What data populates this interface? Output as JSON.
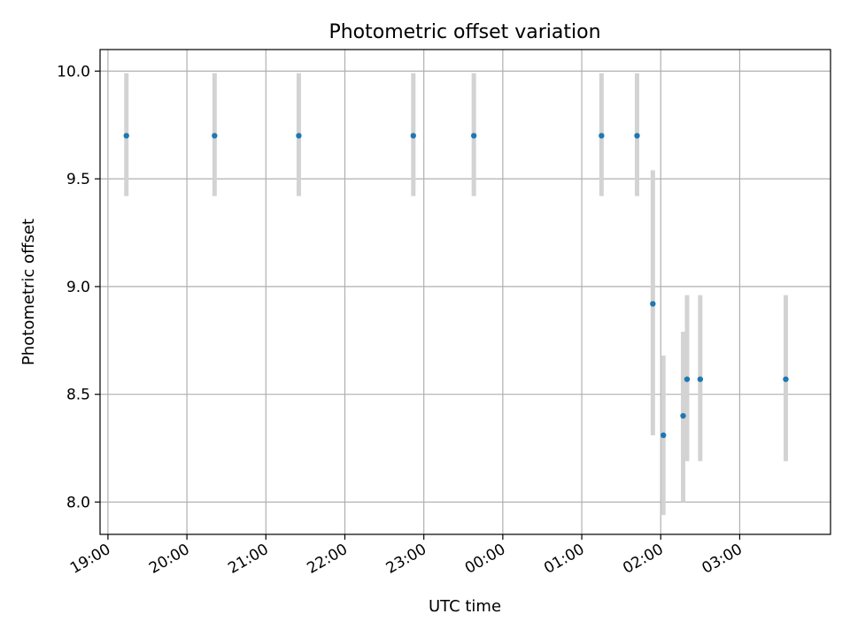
{
  "chart_data": {
    "type": "scatter",
    "title": "Photometric offset variation",
    "xlabel": "UTC time",
    "ylabel": "Photometric offset",
    "xlim": [
      "18:54",
      "04:09"
    ],
    "ylim": [
      7.85,
      10.1
    ],
    "grid": true,
    "x_ticks": [
      "19:00",
      "20:00",
      "21:00",
      "22:00",
      "23:00",
      "00:00",
      "01:00",
      "02:00",
      "03:00"
    ],
    "y_ticks": [
      "8.0",
      "8.5",
      "9.0",
      "9.5",
      "10.0"
    ],
    "point_color": "#1f77b4",
    "errorbar_color": "#d3d3d3",
    "points": [
      {
        "x": "19:14",
        "y": 9.7,
        "y_low": 9.42,
        "y_high": 9.99
      },
      {
        "x": "20:21",
        "y": 9.7,
        "y_low": 9.42,
        "y_high": 9.99
      },
      {
        "x": "21:25",
        "y": 9.7,
        "y_low": 9.42,
        "y_high": 9.99
      },
      {
        "x": "22:52",
        "y": 9.7,
        "y_low": 9.42,
        "y_high": 9.99
      },
      {
        "x": "23:38",
        "y": 9.7,
        "y_low": 9.42,
        "y_high": 9.99
      },
      {
        "x": "01:15",
        "y": 9.7,
        "y_low": 9.42,
        "y_high": 9.99
      },
      {
        "x": "01:42",
        "y": 9.7,
        "y_low": 9.42,
        "y_high": 9.99
      },
      {
        "x": "01:54",
        "y": 8.92,
        "y_low": 8.31,
        "y_high": 9.54
      },
      {
        "x": "02:02",
        "y": 8.31,
        "y_low": 7.94,
        "y_high": 8.68
      },
      {
        "x": "02:17",
        "y": 8.4,
        "y_low": 8.0,
        "y_high": 8.79
      },
      {
        "x": "02:20",
        "y": 8.57,
        "y_low": 8.19,
        "y_high": 8.96
      },
      {
        "x": "02:30",
        "y": 8.57,
        "y_low": 8.19,
        "y_high": 8.96
      },
      {
        "x": "03:35",
        "y": 8.57,
        "y_low": 8.19,
        "y_high": 8.96
      }
    ]
  }
}
